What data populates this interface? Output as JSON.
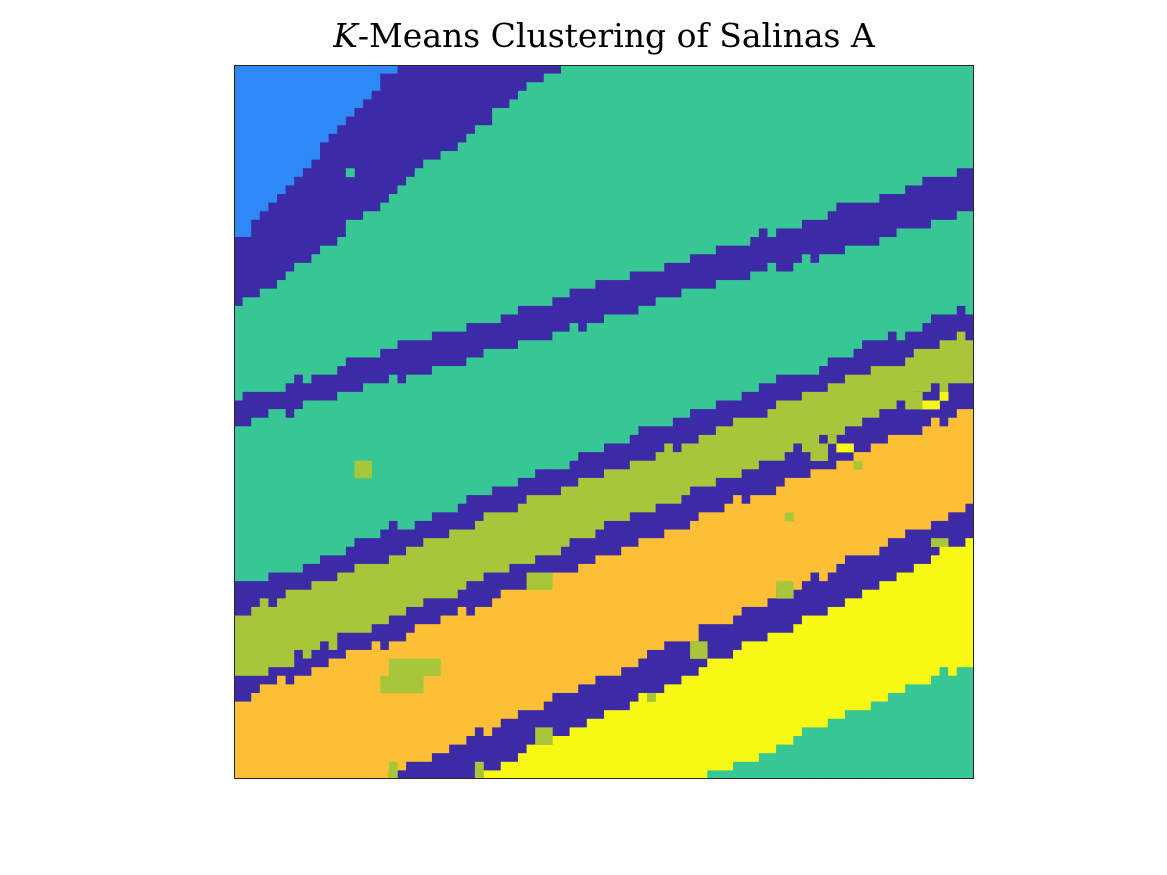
{
  "chart_data": {
    "type": "heatmap",
    "title": {
      "variable": "K",
      "rest": "-Means Clustering of Salinas A"
    },
    "xlabel": "",
    "ylabel": "",
    "axis_ticks": "none",
    "grid_size": [
      86,
      83
    ],
    "band_direction": "diagonal, descending left to right",
    "colors": {
      "frame": "#262626",
      "blue": "#2e88f6",
      "indigo": "#3d2aa6",
      "teal": "#37c795",
      "olive": "#a8c63a",
      "orange": "#fcbf35",
      "yellow": "#f8f815"
    },
    "bands": [
      {
        "cluster": "blue",
        "left_edge_row": 0,
        "right_edge_row": -90
      },
      {
        "cluster": "indigo",
        "left_edge_row": 21,
        "right_edge_row": -74
      },
      {
        "cluster": "teal",
        "left_edge_row": 29,
        "right_edge_row": -37
      },
      {
        "cluster": "indigo",
        "left_edge_row": 39,
        "right_edge_row": 12
      },
      {
        "cluster": "teal",
        "left_edge_row": 42,
        "right_edge_row": 17
      },
      {
        "cluster": "indigo",
        "left_edge_row": 61,
        "right_edge_row": 28
      },
      {
        "cluster": "olive",
        "left_edge_row": 64,
        "right_edge_row": 31
      },
      {
        "cluster": "indigo",
        "left_edge_row": 72,
        "right_edge_row": 36
      },
      {
        "cluster": "orange",
        "left_edge_row": 74,
        "right_edge_row": 40
      },
      {
        "cluster": "indigo",
        "left_edge_row": 91,
        "right_edge_row": 51
      },
      {
        "cluster": "yellow",
        "left_edge_row": 96,
        "right_edge_row": 55
      },
      {
        "cluster": "teal",
        "left_edge_row": 107,
        "right_edge_row": 69
      },
      {
        "cluster": "indigo",
        "left_edge_row": 139,
        "right_edge_row": 90
      }
    ],
    "patches": [
      {
        "cluster": "teal",
        "col": 13,
        "row": 12,
        "w": 1,
        "h": 1
      },
      {
        "cluster": "olive",
        "col": 14,
        "row": 46,
        "w": 2,
        "h": 2
      },
      {
        "cluster": "olive",
        "col": 34,
        "row": 59,
        "w": 3,
        "h": 2
      },
      {
        "cluster": "olive",
        "col": 18,
        "row": 69,
        "w": 6,
        "h": 2
      },
      {
        "cluster": "olive",
        "col": 17,
        "row": 71,
        "w": 5,
        "h": 2
      },
      {
        "cluster": "olive",
        "col": 78,
        "row": 38,
        "w": 2,
        "h": 2
      },
      {
        "cluster": "olive",
        "col": 76,
        "row": 36,
        "w": 1,
        "h": 1
      },
      {
        "cluster": "olive",
        "col": 67,
        "row": 44,
        "w": 2,
        "h": 2
      },
      {
        "cluster": "olive",
        "col": 69,
        "row": 43,
        "w": 1,
        "h": 1
      },
      {
        "cluster": "olive",
        "col": 64,
        "row": 52,
        "w": 1,
        "h": 1
      },
      {
        "cluster": "olive",
        "col": 72,
        "row": 46,
        "w": 1,
        "h": 1
      },
      {
        "cluster": "yellow",
        "col": 70,
        "row": 44,
        "w": 2,
        "h": 1
      },
      {
        "cluster": "yellow",
        "col": 80,
        "row": 39,
        "w": 2,
        "h": 1
      },
      {
        "cluster": "yellow",
        "col": 82,
        "row": 38,
        "w": 1,
        "h": 1
      },
      {
        "cluster": "olive",
        "col": 81,
        "row": 55,
        "w": 2,
        "h": 1
      },
      {
        "cluster": "yellow",
        "col": 82,
        "row": 56,
        "w": 1,
        "h": 1
      },
      {
        "cluster": "olive",
        "col": 18,
        "row": 81,
        "w": 1,
        "h": 2
      },
      {
        "cluster": "olive",
        "col": 28,
        "row": 81,
        "w": 1,
        "h": 2
      },
      {
        "cluster": "olive",
        "col": 35,
        "row": 77,
        "w": 2,
        "h": 2
      },
      {
        "cluster": "olive",
        "col": 63,
        "row": 60,
        "w": 2,
        "h": 2
      },
      {
        "cluster": "olive",
        "col": 53,
        "row": 67,
        "w": 2,
        "h": 2
      },
      {
        "cluster": "olive",
        "col": 48,
        "row": 73,
        "w": 1,
        "h": 1
      }
    ]
  }
}
